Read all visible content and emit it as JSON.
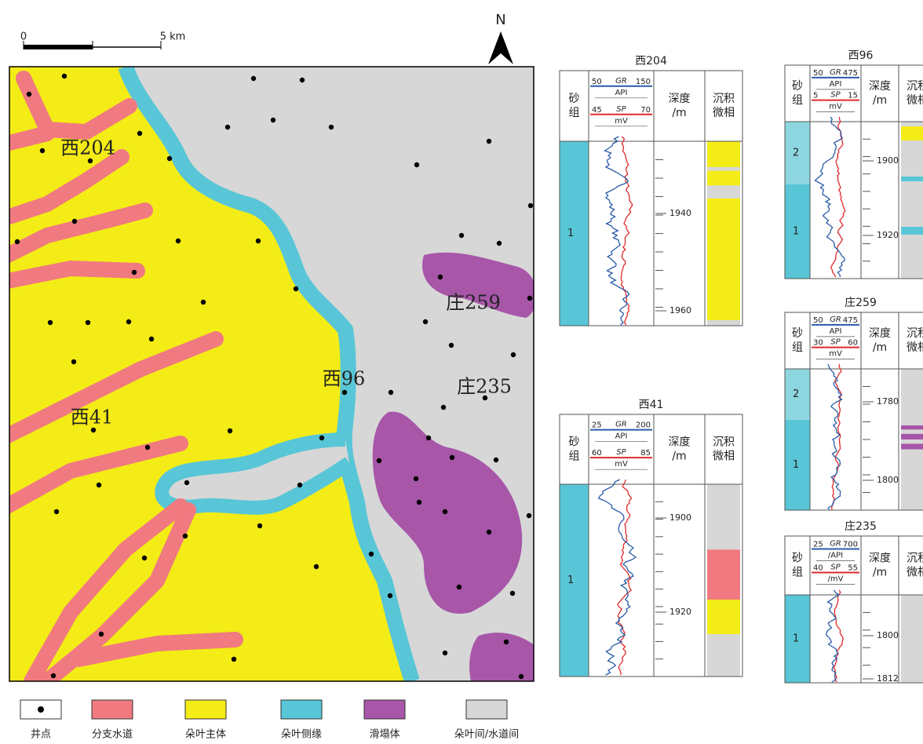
{
  "scale_bar": {
    "start": "0",
    "end": "5 km"
  },
  "north": "N",
  "map_labels": [
    "西204",
    "庄259",
    "西96",
    "庄235",
    "西41"
  ],
  "legend": [
    "井点",
    "分支水道",
    "朵叶主体",
    "朵叶侧缘",
    "滑塌体",
    "朵叶间/水道间"
  ],
  "logs": [
    {
      "title": "西204",
      "sand_header": [
        "砂",
        "组"
      ],
      "gr": {
        "name": "GR",
        "min": 50,
        "max": 150,
        "unit": "API"
      },
      "sp": {
        "name": "SP",
        "min": 45,
        "max": 70,
        "unit": "mV"
      },
      "depth_header": [
        "深度",
        "/m"
      ],
      "facies_header": [
        "沉积",
        "微相"
      ],
      "sand_groups": [
        "1"
      ],
      "depth_ticks": [
        1940,
        1960
      ]
    },
    {
      "title": "西41",
      "sand_header": [
        "砂",
        "组"
      ],
      "gr": {
        "name": "GR",
        "min": 25,
        "max": 200,
        "unit": "API"
      },
      "sp": {
        "name": "SP",
        "min": 60,
        "max": 85,
        "unit": "mV"
      },
      "depth_header": [
        "深度",
        "/m"
      ],
      "facies_header": [
        "沉积",
        "微相"
      ],
      "sand_groups": [
        "1"
      ],
      "depth_ticks": [
        1900,
        1920
      ]
    },
    {
      "title": "西96",
      "sand_header": [
        "砂",
        "组"
      ],
      "gr": {
        "name": "GR",
        "min": 50,
        "max": 475,
        "unit": "API"
      },
      "sp": {
        "name": "SP",
        "min": 5,
        "max": 15,
        "unit": "mV"
      },
      "depth_header": [
        "深度",
        "/m"
      ],
      "facies_header": [
        "沉积",
        "微相"
      ],
      "sand_groups": [
        "2",
        "1"
      ],
      "depth_ticks": [
        1900,
        1920
      ]
    },
    {
      "title": "庄259",
      "sand_header": [
        "砂",
        "组"
      ],
      "gr": {
        "name": "GR",
        "min": 50,
        "max": 475,
        "unit": "API"
      },
      "sp": {
        "name": "SP",
        "min": 30,
        "max": 60,
        "unit": "mV"
      },
      "depth_header": [
        "深度",
        "/m"
      ],
      "facies_header": [
        "沉积",
        "微相"
      ],
      "sand_groups": [
        "2",
        "1"
      ],
      "depth_ticks": [
        1780,
        1800
      ]
    },
    {
      "title": "庄235",
      "sand_header": [
        "砂",
        "组"
      ],
      "gr": {
        "name": "GR",
        "min": 25,
        "max": 700,
        "unit": "/API"
      },
      "sp": {
        "name": "SP",
        "min": 40,
        "max": 55,
        "unit": "/mV"
      },
      "depth_header": [
        "深度",
        "/m"
      ],
      "facies_header": [
        "沉积",
        "微相"
      ],
      "sand_groups": [
        "1"
      ],
      "depth_ticks": [
        1800,
        1812
      ]
    }
  ]
}
